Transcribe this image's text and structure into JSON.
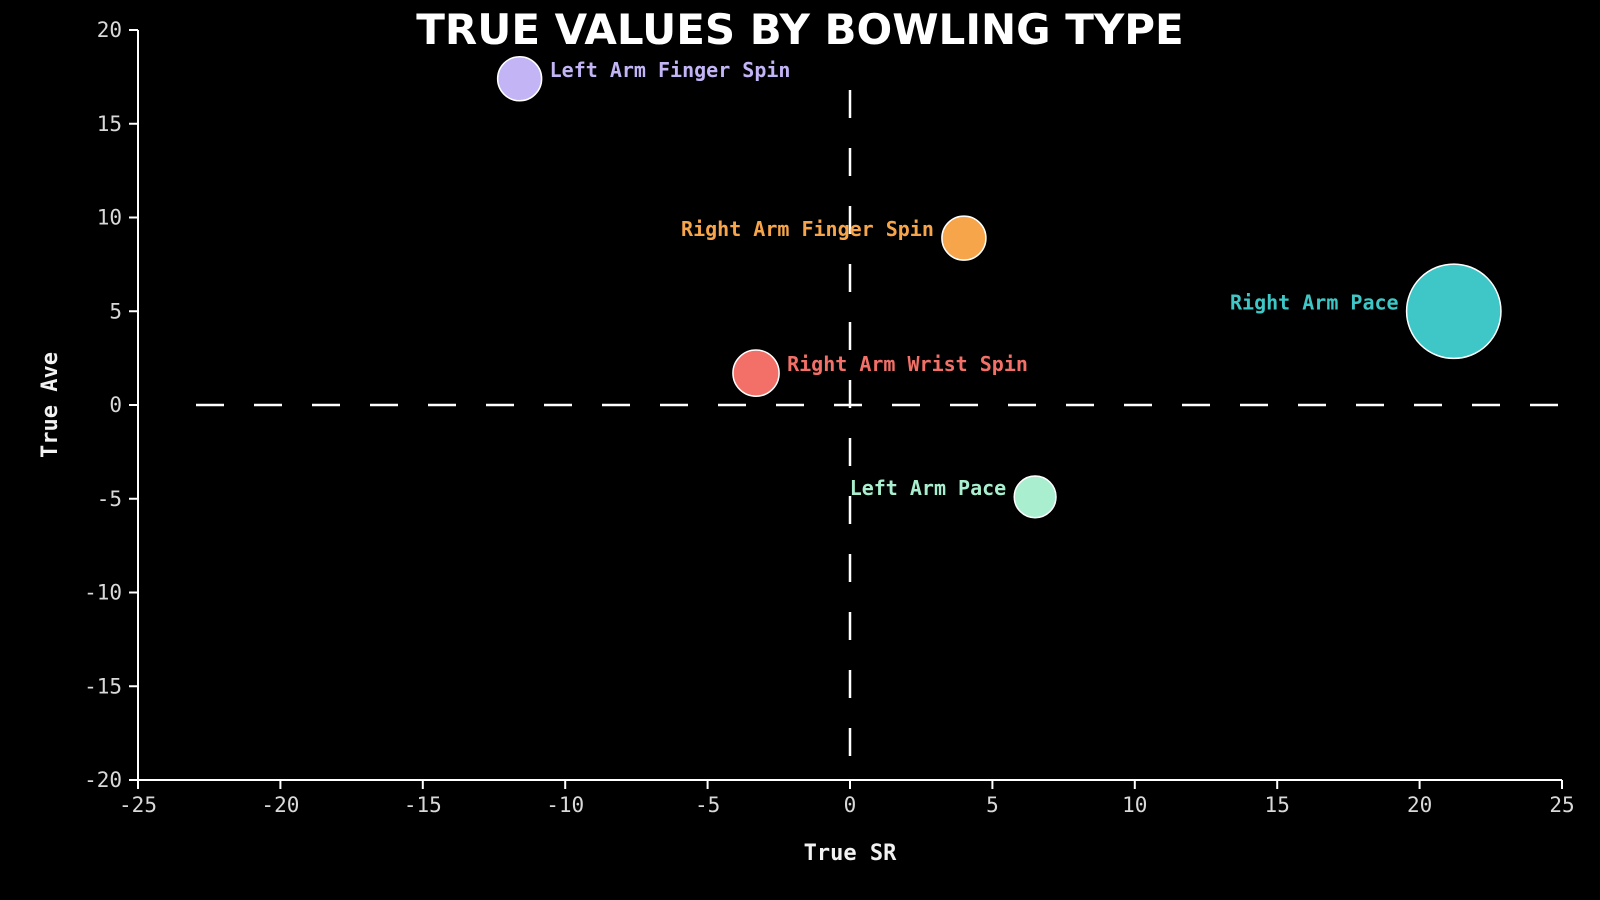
{
  "chart_data": {
    "type": "scatter",
    "title": "TRUE VALUES BY BOWLING TYPE",
    "xlabel": "True SR",
    "ylabel": "True Ave",
    "xlim": [
      -25,
      25
    ],
    "ylim": [
      -20,
      20
    ],
    "xticks": [
      -25,
      -20,
      -15,
      -10,
      -5,
      0,
      5,
      10,
      15,
      20,
      25
    ],
    "yticks": [
      -20,
      -15,
      -10,
      -5,
      0,
      5,
      10,
      15,
      20
    ],
    "reference_lines": {
      "x": 0,
      "y": 0,
      "style": "dashed"
    },
    "grid": false,
    "points": [
      {
        "label": "Left Arm Finger Spin",
        "x": -11.6,
        "y": 17.4,
        "size": 1.0,
        "color": "#c3b4f5",
        "label_side": "right"
      },
      {
        "label": "Right Arm Finger Spin",
        "x": 4.0,
        "y": 8.9,
        "size": 1.0,
        "color": "#f6a54a",
        "label_side": "left"
      },
      {
        "label": "Right Arm Pace",
        "x": 21.2,
        "y": 5.0,
        "size": 4.6,
        "color": "#3fc6c6",
        "label_side": "left"
      },
      {
        "label": "Right Arm Wrist Spin",
        "x": -3.3,
        "y": 1.7,
        "size": 1.1,
        "color": "#f27068",
        "label_side": "right"
      },
      {
        "label": "Left Arm Pace",
        "x": 6.5,
        "y": -4.9,
        "size": 0.9,
        "color": "#a9efcf",
        "label_side": "left"
      }
    ]
  }
}
